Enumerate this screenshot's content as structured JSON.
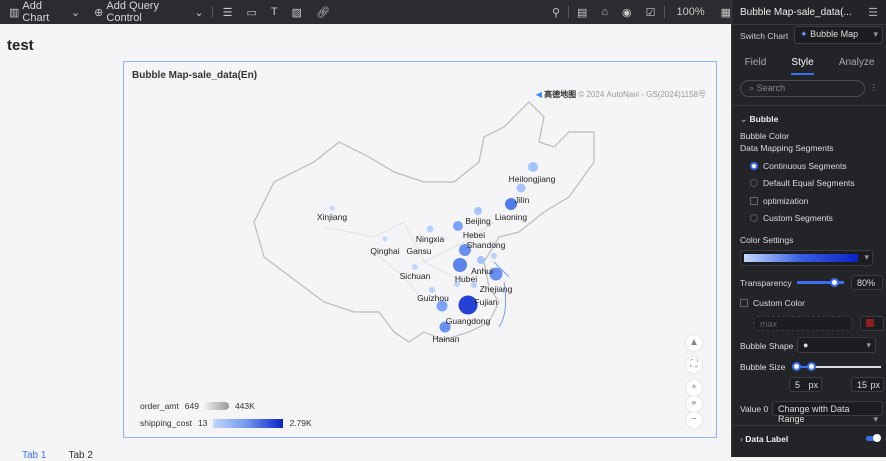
{
  "toolbar": {
    "add_chart": "Add Chart",
    "add_query_control": "Add Query Control",
    "zoom": "100%"
  },
  "page": {
    "title": "test",
    "tabs": [
      "Tab 1",
      "Tab 2"
    ]
  },
  "chart": {
    "title": "Bubble Map-sale_data(En)",
    "attribution_logo": "高德地图",
    "attribution": "© 2024 AutoNavi - GS(2024)1158号",
    "regions": [
      "Heilongjiang",
      "Jilin",
      "Liaoning",
      "Beijing",
      "Hebei",
      "Shandong",
      "Ningxia",
      "Gansu",
      "Qinghai",
      "Xinjiang",
      "Sichuan",
      "Hubei",
      "Anhui",
      "Zhejiang",
      "Guizhou",
      "Fujian",
      "Guangdong",
      "Hainan"
    ],
    "legend": {
      "size_field": "order_amt",
      "size_min": "649",
      "size_max": "443K",
      "color_field": "shipping_cost",
      "color_min": "13",
      "color_max": "2.79K"
    },
    "colors": {
      "low": "#c3d8ff",
      "high": "#0b22c8"
    }
  },
  "panel": {
    "title": "Bubble Map-sale_data(...",
    "switch_chart_label": "Switch Chart",
    "chart_type": "Bubble Map",
    "tabs": [
      "Field",
      "Style",
      "Analyze"
    ],
    "active_tab": "Style",
    "search_placeholder": "Search",
    "section": "Bubble",
    "bubble_color": "Bubble Color",
    "mapping": "Data Mapping Segments",
    "options": [
      "Continuous Segments",
      "Default Equal Segments",
      "optimization",
      "Custom Segments"
    ],
    "color_settings": "Color Settings",
    "transparency_label": "Transparency",
    "transparency": "80%",
    "custom_color": "Custom Color",
    "custom_select": "max",
    "bubble_shape": "Bubble Shape",
    "bubble_size": "Bubble Size",
    "size_min": "5",
    "size_max": "15",
    "unit": "px",
    "value0_label": "Value 0",
    "value0": "Change with Data Range",
    "data_label": "Data Label"
  }
}
